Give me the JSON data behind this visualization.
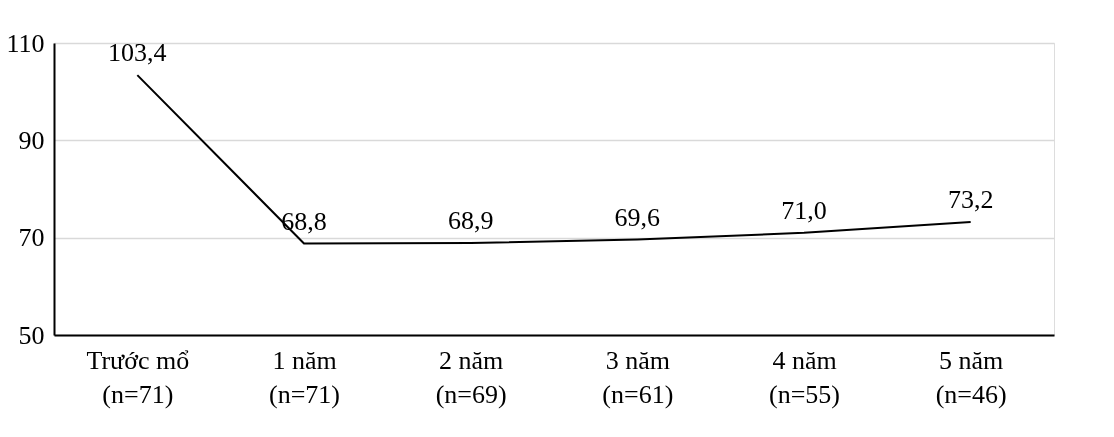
{
  "chart_data": {
    "type": "line",
    "categories": [
      "Trước mổ\n(n=71)",
      "1 năm\n(n=71)",
      "2 năm\n(n=69)",
      "3 năm\n(n=61)",
      "4 năm\n(n=55)",
      "5 năm\n(n=46)"
    ],
    "series": [
      {
        "color": "#000000",
        "values": [
          103.4,
          68.8,
          68.9,
          69.6,
          71.0,
          73.2
        ],
        "value_labels": [
          "103,4",
          "68,8",
          "68,9",
          "69,6",
          "71,0",
          "73,2"
        ]
      }
    ],
    "ylim": [
      50,
      110
    ],
    "yticks": [
      50,
      70,
      90,
      110
    ],
    "grid": "y",
    "marker": "none",
    "line_style": "solid"
  }
}
